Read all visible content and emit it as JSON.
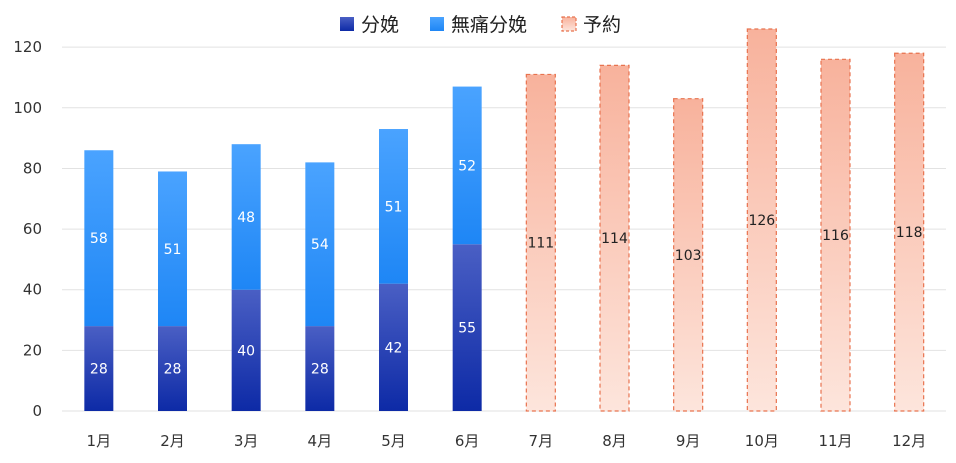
{
  "chart_data": {
    "type": "bar",
    "stacked": true,
    "categories": [
      "1月",
      "2月",
      "3月",
      "4月",
      "5月",
      "6月",
      "7月",
      "8月",
      "9月",
      "10月",
      "11月",
      "12月"
    ],
    "series": [
      {
        "name": "分娩",
        "color": "#1a37b8",
        "values": [
          28,
          28,
          40,
          28,
          42,
          55,
          null,
          null,
          null,
          null,
          null,
          null
        ]
      },
      {
        "name": "無痛分娩",
        "color": "#3a9cff",
        "values": [
          58,
          51,
          48,
          54,
          51,
          52,
          null,
          null,
          null,
          null,
          null,
          null
        ]
      },
      {
        "name": "予約",
        "color": "#f7a58a",
        "border": "#e8734f",
        "values": [
          null,
          null,
          null,
          null,
          null,
          null,
          111,
          114,
          103,
          126,
          116,
          118
        ]
      }
    ],
    "ylim": [
      0,
      125
    ],
    "yticks": [
      0,
      20,
      40,
      60,
      80,
      100,
      120
    ],
    "grid": true,
    "legend": "top-center"
  }
}
